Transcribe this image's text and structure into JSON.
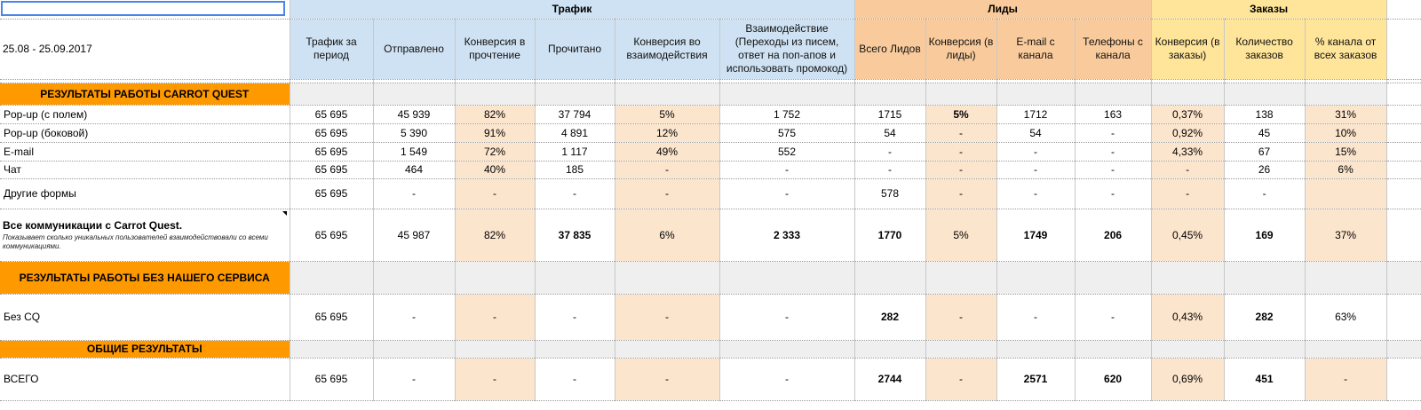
{
  "period": "25.08 - 25.09.2017",
  "groups": {
    "traffic": "Трафик",
    "leads": "Лиды",
    "orders": "Заказы"
  },
  "columns": [
    "Трафик за период",
    "Отправлено",
    "Конверсия в прочтение",
    "Прочитано",
    "Конверсия во взаимодействия",
    "Взаимодействие (Переходы из писем, ответ на поп-апов и использовать промокод)",
    "Всего Лидов",
    "Конверсия (в лиды)",
    "E-mail с канала",
    "Телефоны с канала",
    "Конверсия (в заказы)",
    "Количество заказов",
    "% канала от всех заказов"
  ],
  "sections": {
    "carrot": "РЕЗУЛЬТАТЫ РАБОТЫ CARROT QUEST",
    "without": "РЕЗУЛЬТАТЫ РАБОТЫ БЕЗ НАШЕГО СЕРВИСА",
    "total": "ОБЩИЕ РЕЗУЛЬТАТЫ"
  },
  "rows": {
    "popup_field": {
      "name": "Pop-up (с полем)",
      "values": [
        "65 695",
        "45 939",
        "82%",
        "37 794",
        "5%",
        "1 752",
        "1715",
        "5%",
        "1712",
        "163",
        "0,37%",
        "138",
        "31%"
      ]
    },
    "popup_side": {
      "name": "Pop-up (боковой)",
      "values": [
        "65 695",
        "5 390",
        "91%",
        "4 891",
        "12%",
        "575",
        "54",
        "-",
        "54",
        "-",
        "0,92%",
        "45",
        "10%"
      ]
    },
    "email": {
      "name": "E-mail",
      "values": [
        "65 695",
        "1 549",
        "72%",
        "1 117",
        "49%",
        "552",
        "-",
        "-",
        "-",
        "-",
        "4,33%",
        "67",
        "15%"
      ]
    },
    "chat": {
      "name": "Чат",
      "values": [
        "65 695",
        "464",
        "40%",
        "185",
        "-",
        "-",
        "-",
        "-",
        "-",
        "-",
        "-",
        "26",
        "6%"
      ]
    },
    "other": {
      "name": "Другие формы",
      "values": [
        "65 695",
        "-",
        "-",
        "-",
        "-",
        "-",
        "578",
        "-",
        "-",
        "-",
        "-",
        "-",
        ""
      ]
    },
    "all_cq": {
      "name": "Все коммуникации с Carrot Quest.",
      "note": "Показывает сколько уникальных пользователей взаимодействовали со всеми коммуникациями.",
      "values": [
        "65 695",
        "45 987",
        "82%",
        "37 835",
        "6%",
        "2 333",
        "1770",
        "5%",
        "1749",
        "206",
        "0,45%",
        "169",
        "37%"
      ]
    },
    "no_cq": {
      "name": "Без CQ",
      "values": [
        "65 695",
        "-",
        "-",
        "-",
        "-",
        "-",
        "282",
        "-",
        "-",
        "-",
        "0,43%",
        "282",
        "63%"
      ]
    },
    "total": {
      "name": "ВСЕГО",
      "values": [
        "65 695",
        "-",
        "-",
        "-",
        "-",
        "-",
        "2744",
        "-",
        "2571",
        "620",
        "0,69%",
        "451",
        "-"
      ]
    }
  },
  "colors": {
    "section": "#ff9900",
    "traffic_header": "#cfe2f3",
    "leads_header": "#f9cb9c",
    "orders_header": "#ffe599",
    "highlight": "#fce5cd",
    "selection": "#4a86e8"
  }
}
